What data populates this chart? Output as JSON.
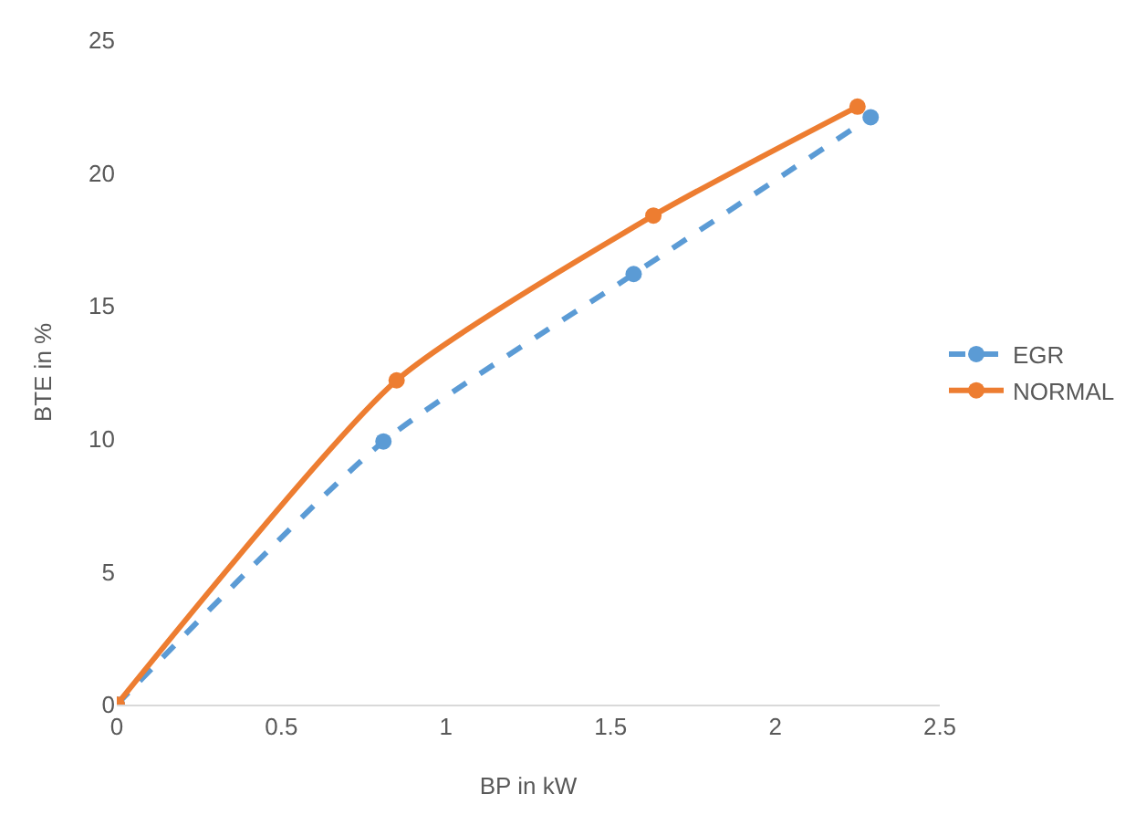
{
  "chart_data": {
    "type": "line",
    "xlabel": "BP in kW",
    "ylabel": "BTE in %",
    "xlim": [
      0,
      2.5
    ],
    "xticks": [
      0,
      0.5,
      1,
      1.5,
      2,
      2.5
    ],
    "ylim": [
      0,
      25
    ],
    "yticks": [
      0,
      5,
      10,
      15,
      20,
      25
    ],
    "grid": false,
    "legend": "right",
    "marker": "circle",
    "series": [
      {
        "name": "EGR",
        "color": "#5b9bd5",
        "line_style": "dashed",
        "x": [
          0,
          0.81,
          1.57,
          2.29
        ],
        "values": [
          0,
          9.9,
          16.2,
          22.1
        ]
      },
      {
        "name": "NORMAL",
        "color": "#ed7d31",
        "line_style": "solid",
        "x": [
          0,
          0.85,
          1.63,
          2.25
        ],
        "values": [
          0,
          12.2,
          18.4,
          22.5
        ]
      }
    ]
  }
}
